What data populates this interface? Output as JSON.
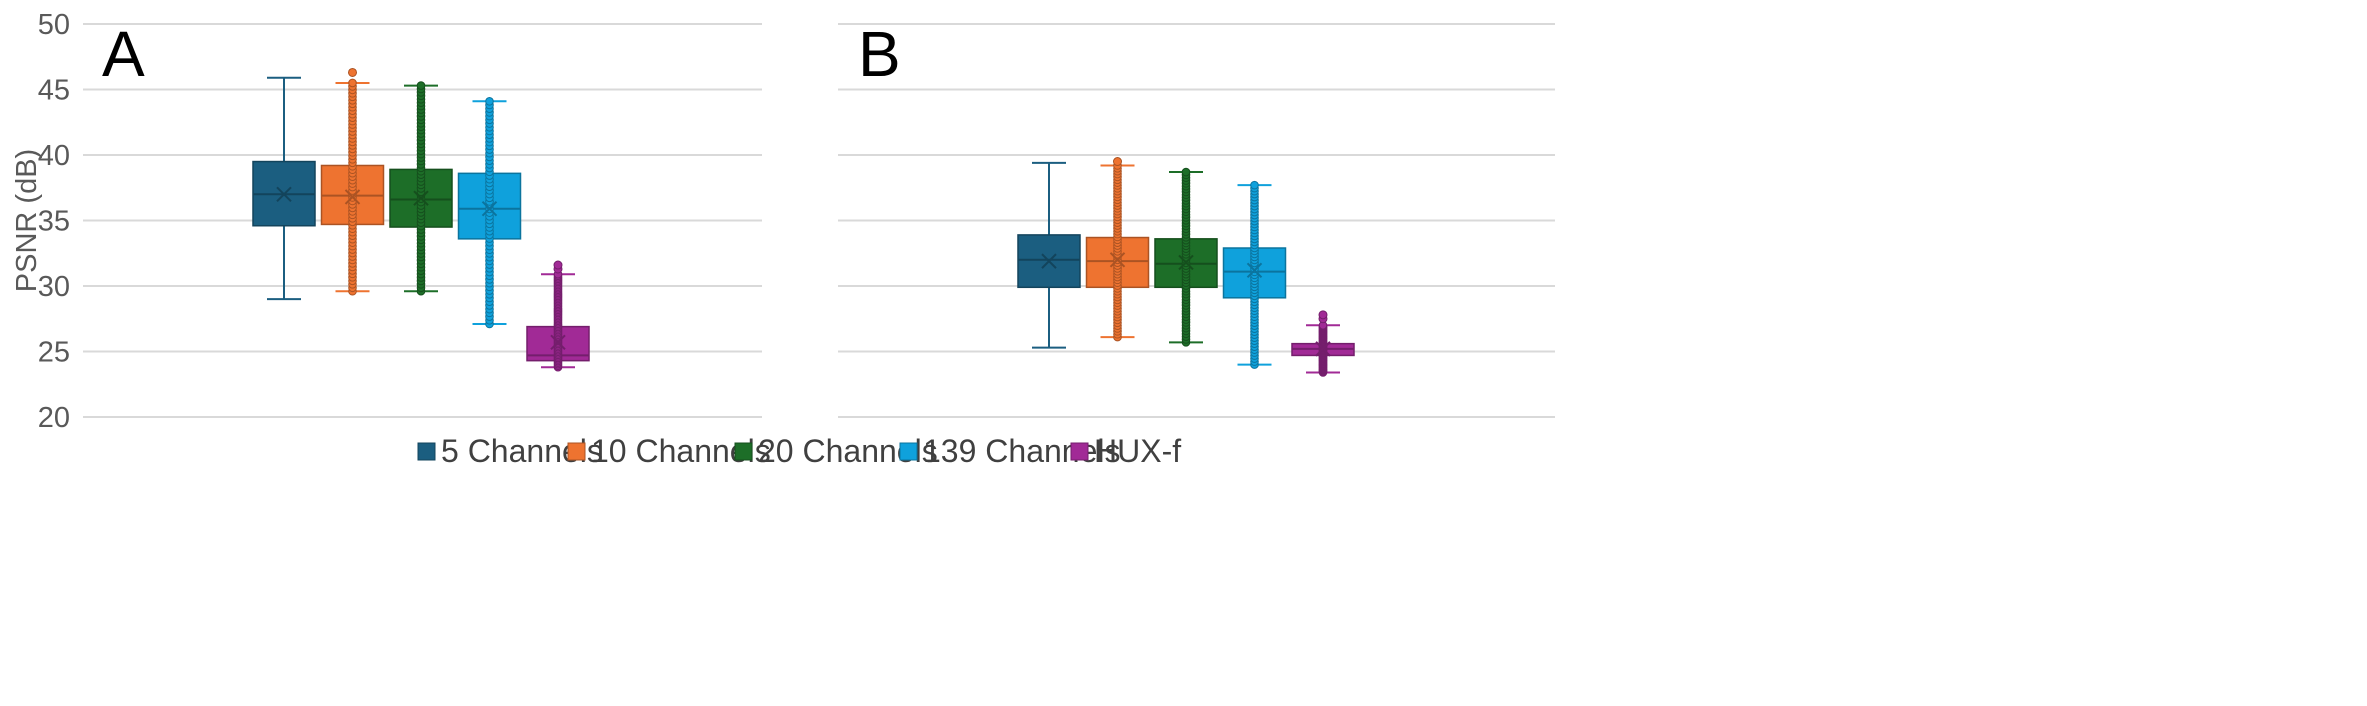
{
  "chart_data": {
    "type": "boxplot",
    "ylabel": "PSNR (dB)",
    "ylim": [
      20,
      50
    ],
    "yticks": [
      20,
      25,
      30,
      35,
      40,
      45,
      50
    ],
    "grid": true,
    "legend_position": "bottom",
    "series": [
      {
        "name": "5 Channels",
        "color": "#1b5e80"
      },
      {
        "name": "10 Channels",
        "color": "#ee7330"
      },
      {
        "name": "20 Channels",
        "color": "#1d6e28"
      },
      {
        "name": "139 Channels",
        "color": "#0fa1dc"
      },
      {
        "name": "HUX-f",
        "color": "#a12a96"
      }
    ],
    "panels": [
      {
        "label": "A",
        "boxes": [
          {
            "series": "5 Channels",
            "whisker_low": 29.0,
            "q1": 34.6,
            "median": 37.0,
            "mean": 37.0,
            "q3": 39.5,
            "whisker_high": 45.9,
            "outliers": []
          },
          {
            "series": "10 Channels",
            "whisker_low": 29.6,
            "q1": 34.7,
            "median": 36.9,
            "mean": 36.8,
            "q3": 39.2,
            "whisker_high": 45.5,
            "outliers": [
              46.3
            ]
          },
          {
            "series": "20 Channels",
            "whisker_low": 29.6,
            "q1": 34.5,
            "median": 36.6,
            "mean": 36.7,
            "q3": 38.9,
            "whisker_high": 45.3,
            "outliers": []
          },
          {
            "series": "139 Channels",
            "whisker_low": 27.1,
            "q1": 33.6,
            "median": 35.9,
            "mean": 35.9,
            "q3": 38.6,
            "whisker_high": 44.1,
            "outliers": []
          },
          {
            "series": "HUX-f",
            "whisker_low": 23.8,
            "q1": 24.3,
            "median": 24.7,
            "mean": 25.7,
            "q3": 26.9,
            "whisker_high": 30.9,
            "outliers": [
              31.3,
              31.6
            ]
          }
        ]
      },
      {
        "label": "B",
        "boxes": [
          {
            "series": "5 Channels",
            "whisker_low": 25.3,
            "q1": 29.9,
            "median": 32.0,
            "mean": 31.9,
            "q3": 33.9,
            "whisker_high": 39.4,
            "outliers": []
          },
          {
            "series": "10 Channels",
            "whisker_low": 26.1,
            "q1": 29.9,
            "median": 31.9,
            "mean": 32.0,
            "q3": 33.7,
            "whisker_high": 39.2,
            "outliers": [
              39.5
            ]
          },
          {
            "series": "20 Channels",
            "whisker_low": 25.7,
            "q1": 29.9,
            "median": 31.7,
            "mean": 31.8,
            "q3": 33.6,
            "whisker_high": 38.7,
            "outliers": []
          },
          {
            "series": "139 Channels",
            "whisker_low": 24.0,
            "q1": 29.1,
            "median": 31.1,
            "mean": 31.2,
            "q3": 32.9,
            "whisker_high": 37.7,
            "outliers": []
          },
          {
            "series": "HUX-f",
            "whisker_low": 23.4,
            "q1": 24.7,
            "median": 25.2,
            "mean": 25.2,
            "q3": 25.6,
            "whisker_high": 27.0,
            "outliers": [
              27.5,
              27.8
            ]
          }
        ]
      }
    ]
  }
}
